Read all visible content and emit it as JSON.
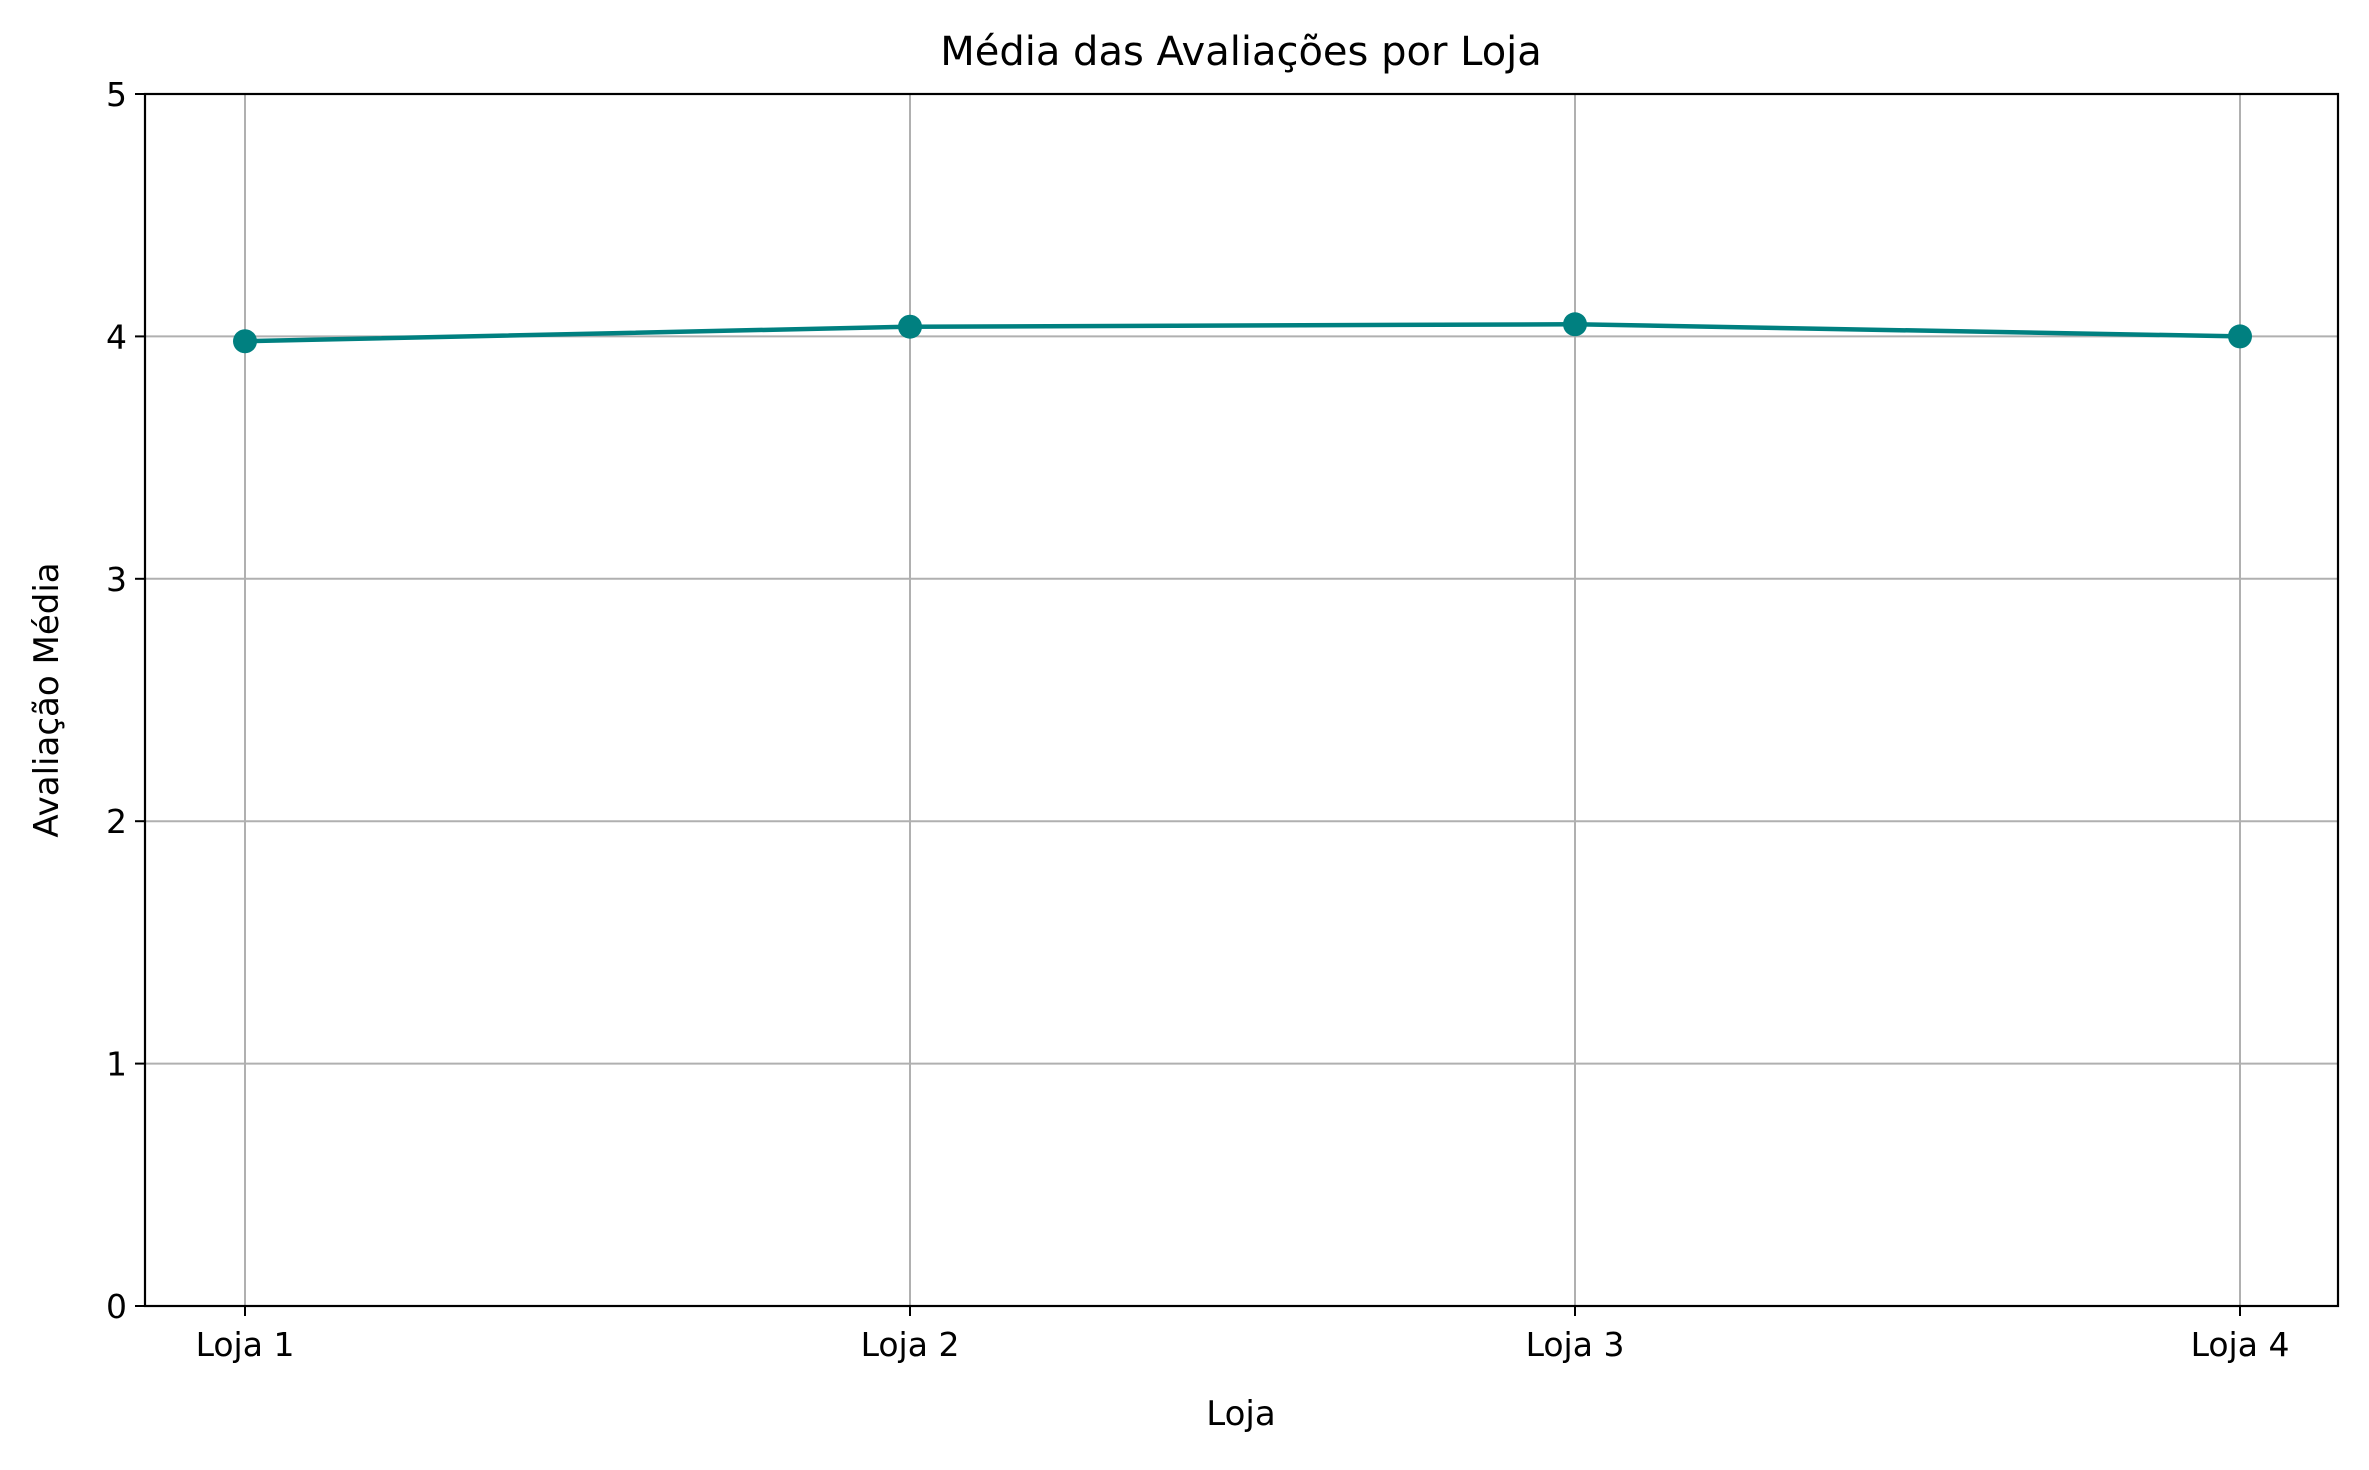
{
  "chart_data": {
    "type": "line",
    "title": "Média das Avaliações por Loja",
    "xlabel": "Loja",
    "ylabel": "Avaliação Média",
    "categories": [
      "Loja 1",
      "Loja 2",
      "Loja 3",
      "Loja 4"
    ],
    "series": [
      {
        "values": [
          3.98,
          4.04,
          4.05,
          4.0
        ],
        "color": "#008080",
        "marker": "circle"
      }
    ],
    "ylim": [
      0,
      5
    ],
    "yticks": [
      "0",
      "1",
      "2",
      "3",
      "4",
      "5"
    ],
    "grid": true
  }
}
